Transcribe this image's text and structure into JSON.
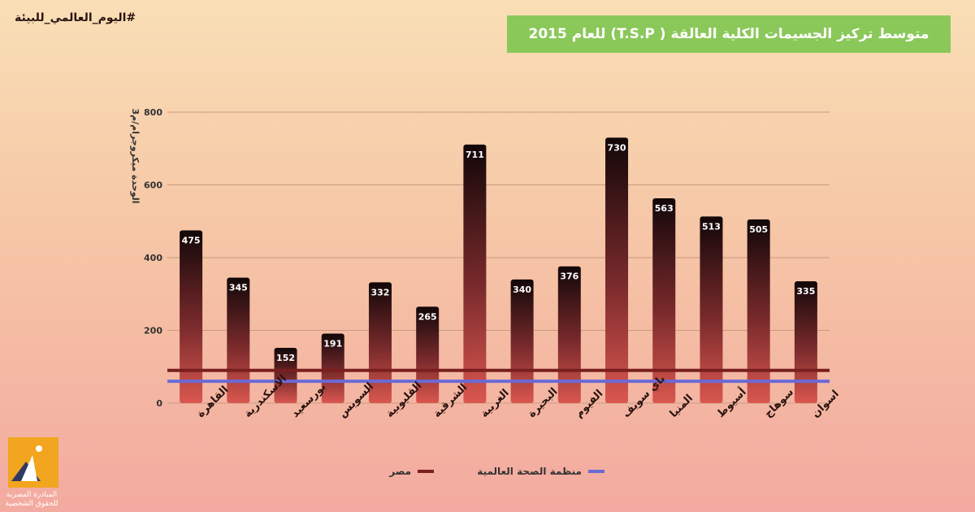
{
  "hashtag": "#اليوم_العالمي_للبيئة",
  "title": "متوسط تركيز الجسيمات الكلية العالقة ( T.S.P) للعام 2015",
  "logo": {
    "text": "المبادرة المصرية للحقوق الشخصية"
  },
  "colors": {
    "title_bg": "#8bc85a",
    "egypt_line": "#7a1f1f",
    "who_line": "#6a6ad6",
    "bar_top": "#120708",
    "bar_bottom": "#d9574f"
  },
  "chart_data": {
    "type": "bar",
    "ylabel": "الوحدة ميكروجرام/م3",
    "ylim": [
      0,
      800
    ],
    "yticks": [
      "0",
      "200",
      "400",
      "600",
      "800"
    ],
    "categories": [
      "القاهرة",
      "الاسكندرية",
      "بورسعيد",
      "السويس",
      "القليوبية",
      "الشرقية",
      "الغربية",
      "البحيرة",
      "الفيوم",
      "باي سويف",
      "المنيا",
      "أسيوط",
      "سوهاج",
      "اسوان"
    ],
    "values": [
      475,
      345,
      152,
      191,
      332,
      265,
      711,
      340,
      376,
      730,
      563,
      513,
      505,
      335
    ],
    "value_labels": [
      "475",
      "345",
      "152",
      "191",
      "332",
      "265",
      "711",
      "340",
      "376",
      "730",
      "563",
      "513",
      "505",
      "335"
    ],
    "reference_lines": [
      {
        "name": "مصر",
        "value": 90,
        "color": "#7a1f1f"
      },
      {
        "name": "منظمة الصحة العالمية",
        "value": 60,
        "color": "#6a6ad6"
      }
    ],
    "grid": true,
    "legend": "bottom-center"
  }
}
